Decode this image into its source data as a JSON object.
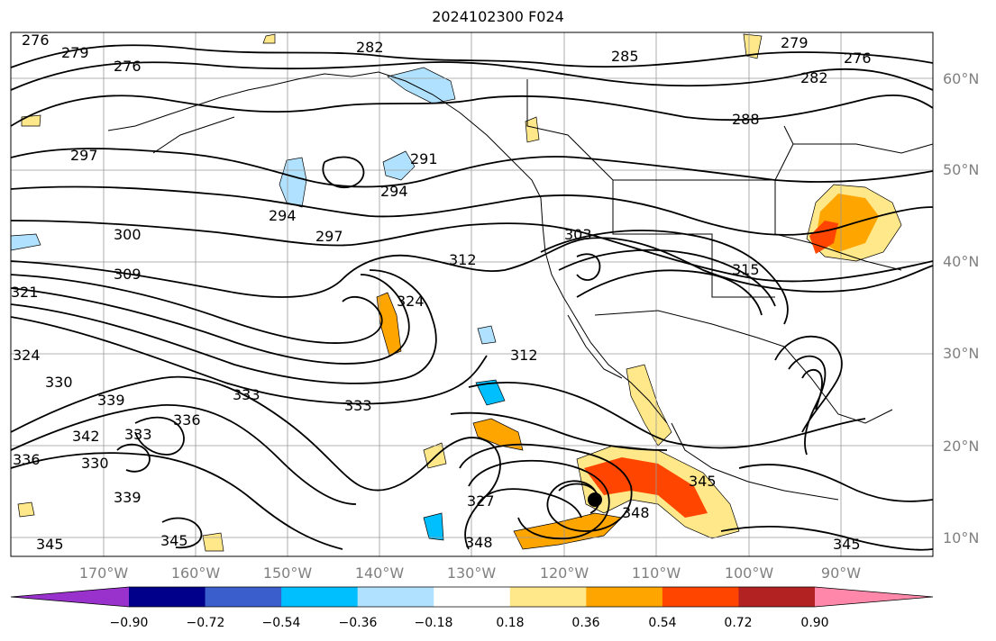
{
  "title": "2024102300 F024",
  "latitude_labels": [
    "60°N",
    "50°N",
    "40°N",
    "30°N",
    "20°N",
    "10°N"
  ],
  "longitude_labels": [
    "170°W",
    "160°W",
    "150°W",
    "140°W",
    "130°W",
    "120°W",
    "110°W",
    "100°W",
    "90°W"
  ],
  "contour_labels": [
    "276",
    "279",
    "276",
    "282",
    "285",
    "279",
    "282",
    "276",
    "288",
    "297",
    "291",
    "294",
    "294",
    "300",
    "297",
    "303",
    "309",
    "312",
    "315",
    "321",
    "324",
    "312",
    "324",
    "330",
    "339",
    "333",
    "333",
    "342",
    "336",
    "333",
    "336",
    "330",
    "339",
    "327",
    "348",
    "345",
    "345",
    "345",
    "348",
    "345"
  ],
  "colorbar": {
    "tick_labels": [
      "−0.90",
      "−0.72",
      "−0.54",
      "−0.36",
      "−0.18",
      "0.18",
      "0.36",
      "0.54",
      "0.72",
      "0.90"
    ],
    "colors": [
      "#9932CC",
      "#00008B",
      "#3A5FCD",
      "#00BFFF",
      "#B0E2FF",
      "#FFFFFF",
      "#FFE88A",
      "#FFA500",
      "#FF4500",
      "#B22222",
      "#FF88AA"
    ]
  }
}
